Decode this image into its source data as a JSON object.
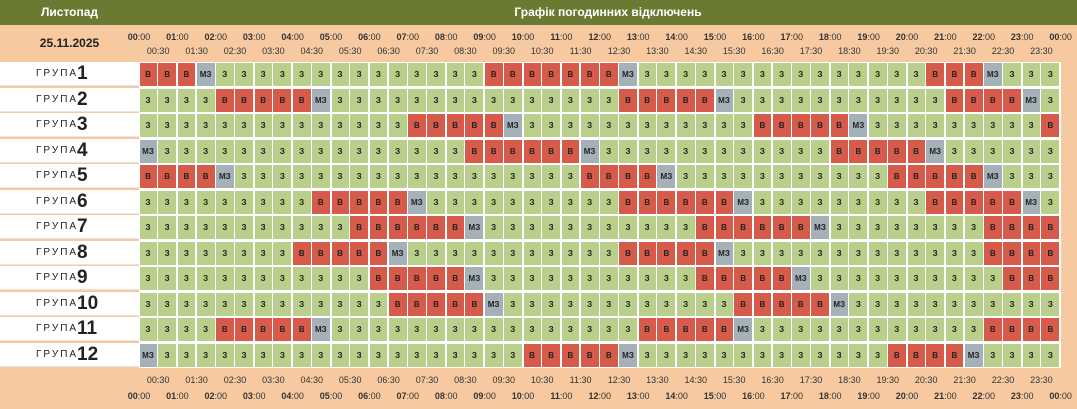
{
  "header": {
    "month": "Листопад",
    "title": "Графік погодинних відключень",
    "date": "25.11.2025"
  },
  "colors": {
    "header_bg": "#6a7a32",
    "power_on_z": "#b9cf8b",
    "power_off_v": "#d65b4a",
    "maybe_mz": "#a5b1b9",
    "page_bg": "#f6c9a0"
  },
  "legend_codes": {
    "z": "З",
    "v": "В",
    "m": "МЗ"
  },
  "hours": [
    "00",
    "01",
    "02",
    "03",
    "04",
    "05",
    "06",
    "07",
    "08",
    "09",
    "10",
    "11",
    "12",
    "13",
    "14",
    "15",
    "16",
    "17",
    "18",
    "19",
    "20",
    "21",
    "22",
    "23",
    "00"
  ],
  "half_hours": [
    "00:30",
    "01:30",
    "02:30",
    "03:30",
    "04:30",
    "05:30",
    "06:30",
    "07:30",
    "08:30",
    "09:30",
    "10:30",
    "11:30",
    "12:30",
    "13:30",
    "14:30",
    "15:30",
    "16:30",
    "17:30",
    "18:30",
    "19:30",
    "20:30",
    "21:30",
    "22:30",
    "23:30"
  ],
  "minute_suffix": ":00",
  "group_word": "ГРУПА",
  "groups": [
    {
      "num": "1",
      "slots": "vvvmzzzzzzzzzzzzzzvvvvvvvmzzzzzzzzzzzzzzzvvvmzzzzzzzzzzzzvv"
    },
    {
      "num": "2",
      "slots": "zzzzvvvvvmzzzzzzzzzzzzzzzvvvvvmzzzzzzzzzzzvvvvmzzzzzzzzzzzzz"
    },
    {
      "num": "3",
      "slots": "zzzzzzzzzzzzzzvvvvvmzzzzzzzzzzzzvvvvvmzzzzzzzzzvvvvvmz"
    },
    {
      "num": "4",
      "slots": "mzzzzzzzzzzzzzzzzvvvvvvmzzzzzzzzzzzzvvvvvmzzzzzzzzzzvvvvvm"
    },
    {
      "num": "5",
      "slots": "vvvvmzzzzzzzzzzzzzzzzzzvvvvmzzzzzzzzzzzvvvvvmzzzzzzzzzzzzzv"
    },
    {
      "num": "6",
      "slots": "zzzzzzzzzvvvvvmzzzzzzzzzzvvvvvvmzzzzzzzzzvvvvvmzzzzzzzz"
    },
    {
      "num": "7",
      "slots": "zzzzzzzzzzzvvvvvvmzzzzzzzzzzzvvvvvvmzzzzzzzzvvvvvvmzzzz"
    },
    {
      "num": "8",
      "slots": "zzzzzzzzvvvvvmzzzzzzzzzzzvvvvvmzzzzzzzzzzzzzvvvvvmzzzzzzzzzz"
    },
    {
      "num": "9",
      "slots": "zzzzzzzzzzzzvvvvvmzzzzzzzzzzzvvvvvmzzzzzzzzzzvvvvvmzzzzzzz"
    },
    {
      "num": "10",
      "slots": "zzzzzzzzzzzzzvvvvvmzzzzzzzzzzzzvvvvvmzzzzzzzzzzzvvvvvm"
    },
    {
      "num": "11",
      "slots": "zzzzvvvvvmzzzzzzzzzzzzzzzzvvvvvmzzzzzzzzzzzzvvvvvmzzzzzzzz"
    },
    {
      "num": "12",
      "slots": "mzzzzzzzzzzzzzzzzzzzvvvvvmzzzzzzzzzzzzzvvvvmzzzzzzzzzzzzvvv"
    }
  ]
}
